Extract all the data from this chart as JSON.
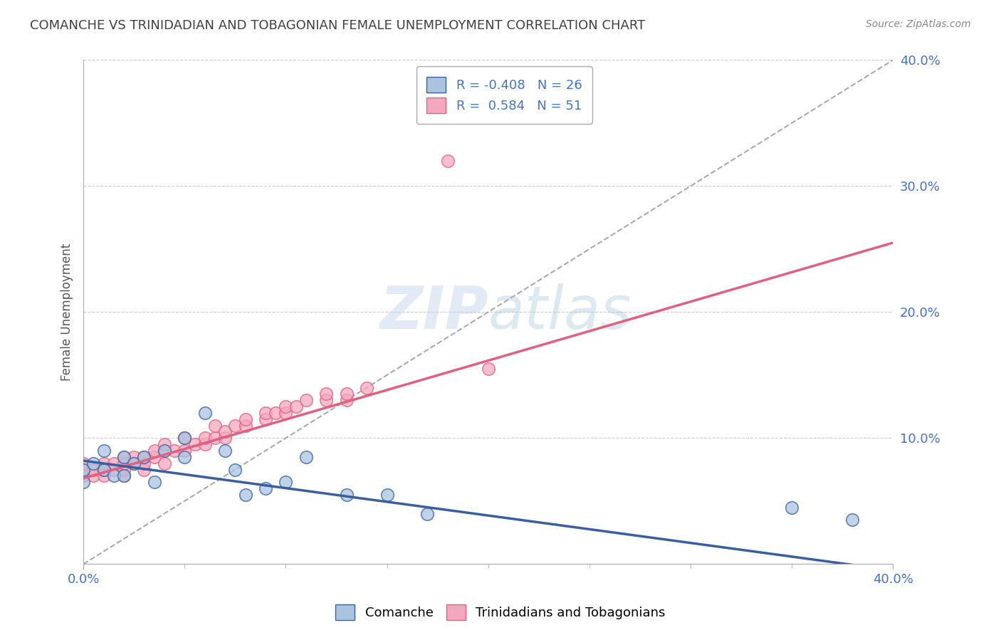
{
  "title": "COMANCHE VS TRINIDADIAN AND TOBAGONIAN FEMALE UNEMPLOYMENT CORRELATION CHART",
  "source_text": "Source: ZipAtlas.com",
  "ylabel": "Female Unemployment",
  "xlim": [
    0.0,
    0.4
  ],
  "ylim": [
    0.0,
    0.4
  ],
  "comanche_x": [
    0.0,
    0.0,
    0.005,
    0.01,
    0.01,
    0.015,
    0.02,
    0.02,
    0.025,
    0.03,
    0.035,
    0.04,
    0.05,
    0.05,
    0.06,
    0.07,
    0.075,
    0.08,
    0.09,
    0.1,
    0.11,
    0.13,
    0.15,
    0.17,
    0.35,
    0.38
  ],
  "comanche_y": [
    0.075,
    0.065,
    0.08,
    0.09,
    0.075,
    0.07,
    0.085,
    0.07,
    0.08,
    0.085,
    0.065,
    0.09,
    0.1,
    0.085,
    0.12,
    0.09,
    0.075,
    0.055,
    0.06,
    0.065,
    0.085,
    0.055,
    0.055,
    0.04,
    0.045,
    0.035
  ],
  "trini_x": [
    0.0,
    0.0,
    0.0,
    0.005,
    0.005,
    0.01,
    0.01,
    0.01,
    0.015,
    0.015,
    0.02,
    0.02,
    0.02,
    0.02,
    0.025,
    0.025,
    0.03,
    0.03,
    0.03,
    0.035,
    0.035,
    0.04,
    0.04,
    0.04,
    0.045,
    0.05,
    0.05,
    0.055,
    0.06,
    0.06,
    0.065,
    0.065,
    0.07,
    0.07,
    0.075,
    0.08,
    0.08,
    0.09,
    0.09,
    0.095,
    0.1,
    0.1,
    0.105,
    0.11,
    0.12,
    0.12,
    0.13,
    0.13,
    0.14,
    0.18,
    0.2
  ],
  "trini_y": [
    0.07,
    0.075,
    0.08,
    0.07,
    0.075,
    0.07,
    0.075,
    0.08,
    0.075,
    0.08,
    0.07,
    0.075,
    0.08,
    0.085,
    0.08,
    0.085,
    0.075,
    0.08,
    0.085,
    0.085,
    0.09,
    0.08,
    0.09,
    0.095,
    0.09,
    0.09,
    0.1,
    0.095,
    0.095,
    0.1,
    0.1,
    0.11,
    0.1,
    0.105,
    0.11,
    0.11,
    0.115,
    0.115,
    0.12,
    0.12,
    0.12,
    0.125,
    0.125,
    0.13,
    0.13,
    0.135,
    0.13,
    0.135,
    0.14,
    0.32,
    0.155
  ],
  "comanche_color": "#aac4e0",
  "trini_color": "#f4a8c0",
  "comanche_line_color": "#3a5fa0",
  "trini_line_color": "#e06080",
  "trini_trend_start_x": 0.0,
  "trini_trend_start_y": 0.068,
  "trini_trend_end_x": 0.4,
  "trini_trend_end_y": 0.255,
  "comanche_trend_start_x": 0.0,
  "comanche_trend_start_y": 0.082,
  "comanche_trend_end_x": 0.4,
  "comanche_trend_end_y": -0.005,
  "diag_line_start_x": 0.0,
  "diag_line_start_y": 0.0,
  "diag_line_end_x": 0.4,
  "diag_line_end_y": 0.4,
  "R_comanche": -0.408,
  "N_comanche": 26,
  "R_trini": 0.584,
  "N_trini": 51,
  "background_color": "#ffffff",
  "grid_color": "#cccccc",
  "tick_label_color": "#4472c4",
  "title_color": "#404040"
}
